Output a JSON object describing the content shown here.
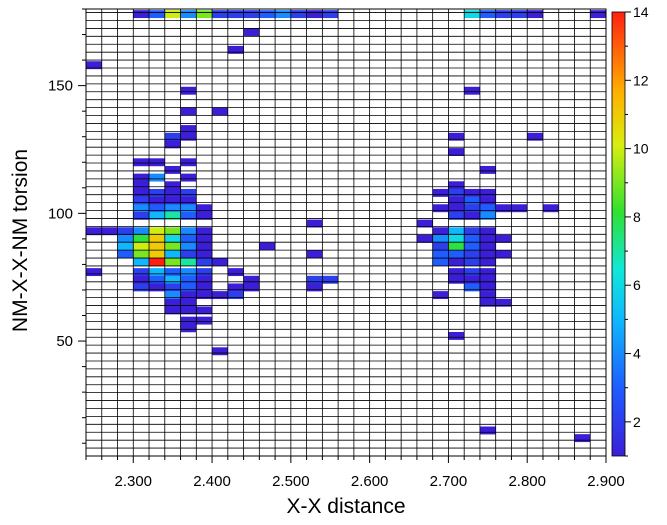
{
  "chart_data": {
    "type": "heatmap",
    "title": "",
    "xlabel": "X-X distance",
    "ylabel": "NM-X-X-NM torsion",
    "xlim": [
      2.24,
      2.9
    ],
    "ylim": [
      5,
      180
    ],
    "bin_width_x": 0.02,
    "bin_height_y": 3.1,
    "x_ticks": [
      "2.300",
      "2.400",
      "2.500",
      "2.600",
      "2.700",
      "2.800",
      "2.900"
    ],
    "x_tick_values": [
      2.3,
      2.4,
      2.5,
      2.6,
      2.7,
      2.8,
      2.9
    ],
    "y_ticks": [
      "50",
      "100",
      "150"
    ],
    "y_tick_values": [
      50,
      100,
      150
    ],
    "colorbar": {
      "min": 1,
      "max": 14,
      "ticks": [
        "2",
        "4",
        "6",
        "8",
        "10",
        "12",
        "14"
      ],
      "tick_values": [
        2,
        4,
        6,
        8,
        10,
        12,
        14
      ]
    },
    "grid": true,
    "cells": [
      {
        "x": 2.31,
        "y": 178,
        "v": 1
      },
      {
        "x": 2.33,
        "y": 178,
        "v": 3
      },
      {
        "x": 2.35,
        "y": 178,
        "v": 10
      },
      {
        "x": 2.37,
        "y": 178,
        "v": 4
      },
      {
        "x": 2.39,
        "y": 178,
        "v": 9
      },
      {
        "x": 2.41,
        "y": 178,
        "v": 2
      },
      {
        "x": 2.43,
        "y": 178,
        "v": 2
      },
      {
        "x": 2.45,
        "y": 178,
        "v": 2
      },
      {
        "x": 2.47,
        "y": 178,
        "v": 3
      },
      {
        "x": 2.49,
        "y": 178,
        "v": 4
      },
      {
        "x": 2.51,
        "y": 178,
        "v": 2
      },
      {
        "x": 2.53,
        "y": 178,
        "v": 1
      },
      {
        "x": 2.55,
        "y": 178,
        "v": 2
      },
      {
        "x": 2.73,
        "y": 178,
        "v": 6
      },
      {
        "x": 2.75,
        "y": 178,
        "v": 3
      },
      {
        "x": 2.77,
        "y": 178,
        "v": 2
      },
      {
        "x": 2.79,
        "y": 178,
        "v": 2
      },
      {
        "x": 2.81,
        "y": 178,
        "v": 1
      },
      {
        "x": 2.89,
        "y": 178,
        "v": 1
      },
      {
        "x": 2.45,
        "y": 171,
        "v": 1
      },
      {
        "x": 2.43,
        "y": 164,
        "v": 1
      },
      {
        "x": 2.25,
        "y": 158,
        "v": 1
      },
      {
        "x": 2.73,
        "y": 148,
        "v": 1
      },
      {
        "x": 2.37,
        "y": 148,
        "v": 1
      },
      {
        "x": 2.37,
        "y": 140,
        "v": 1
      },
      {
        "x": 2.41,
        "y": 140,
        "v": 1
      },
      {
        "x": 2.37,
        "y": 133,
        "v": 1
      },
      {
        "x": 2.35,
        "y": 130,
        "v": 2
      },
      {
        "x": 2.37,
        "y": 130,
        "v": 1
      },
      {
        "x": 2.71,
        "y": 130,
        "v": 1
      },
      {
        "x": 2.81,
        "y": 130,
        "v": 1
      },
      {
        "x": 2.35,
        "y": 127,
        "v": 1
      },
      {
        "x": 2.71,
        "y": 124,
        "v": 1
      },
      {
        "x": 2.31,
        "y": 120,
        "v": 1
      },
      {
        "x": 2.33,
        "y": 120,
        "v": 1
      },
      {
        "x": 2.37,
        "y": 120,
        "v": 1
      },
      {
        "x": 2.35,
        "y": 117,
        "v": 1
      },
      {
        "x": 2.75,
        "y": 117,
        "v": 1
      },
      {
        "x": 2.31,
        "y": 114,
        "v": 1
      },
      {
        "x": 2.33,
        "y": 114,
        "v": 4
      },
      {
        "x": 2.37,
        "y": 114,
        "v": 1
      },
      {
        "x": 2.31,
        "y": 111,
        "v": 1
      },
      {
        "x": 2.35,
        "y": 111,
        "v": 1
      },
      {
        "x": 2.71,
        "y": 111,
        "v": 1
      },
      {
        "x": 2.31,
        "y": 108,
        "v": 1
      },
      {
        "x": 2.33,
        "y": 108,
        "v": 2
      },
      {
        "x": 2.35,
        "y": 108,
        "v": 1
      },
      {
        "x": 2.37,
        "y": 108,
        "v": 2
      },
      {
        "x": 2.69,
        "y": 108,
        "v": 1
      },
      {
        "x": 2.71,
        "y": 108,
        "v": 2
      },
      {
        "x": 2.73,
        "y": 108,
        "v": 1
      },
      {
        "x": 2.75,
        "y": 108,
        "v": 1
      },
      {
        "x": 2.31,
        "y": 105,
        "v": 2
      },
      {
        "x": 2.33,
        "y": 105,
        "v": 1
      },
      {
        "x": 2.35,
        "y": 105,
        "v": 1
      },
      {
        "x": 2.37,
        "y": 105,
        "v": 1
      },
      {
        "x": 2.71,
        "y": 105,
        "v": 1
      },
      {
        "x": 2.73,
        "y": 105,
        "v": 3
      },
      {
        "x": 2.75,
        "y": 105,
        "v": 1
      },
      {
        "x": 2.31,
        "y": 102,
        "v": 4
      },
      {
        "x": 2.33,
        "y": 102,
        "v": 3
      },
      {
        "x": 2.35,
        "y": 102,
        "v": 4
      },
      {
        "x": 2.37,
        "y": 102,
        "v": 4
      },
      {
        "x": 2.39,
        "y": 102,
        "v": 1
      },
      {
        "x": 2.69,
        "y": 102,
        "v": 1
      },
      {
        "x": 2.71,
        "y": 102,
        "v": 1
      },
      {
        "x": 2.73,
        "y": 102,
        "v": 2
      },
      {
        "x": 2.75,
        "y": 102,
        "v": 3
      },
      {
        "x": 2.77,
        "y": 102,
        "v": 1
      },
      {
        "x": 2.79,
        "y": 102,
        "v": 1
      },
      {
        "x": 2.83,
        "y": 102,
        "v": 1
      },
      {
        "x": 2.31,
        "y": 99,
        "v": 2
      },
      {
        "x": 2.33,
        "y": 99,
        "v": 5
      },
      {
        "x": 2.35,
        "y": 99,
        "v": 7
      },
      {
        "x": 2.37,
        "y": 99,
        "v": 3
      },
      {
        "x": 2.39,
        "y": 99,
        "v": 1
      },
      {
        "x": 2.71,
        "y": 99,
        "v": 2
      },
      {
        "x": 2.73,
        "y": 99,
        "v": 1
      },
      {
        "x": 2.75,
        "y": 99,
        "v": 4
      },
      {
        "x": 2.53,
        "y": 96,
        "v": 1
      },
      {
        "x": 2.67,
        "y": 96,
        "v": 1
      },
      {
        "x": 2.25,
        "y": 93,
        "v": 1
      },
      {
        "x": 2.27,
        "y": 93,
        "v": 1
      },
      {
        "x": 2.29,
        "y": 93,
        "v": 2
      },
      {
        "x": 2.31,
        "y": 93,
        "v": 4
      },
      {
        "x": 2.33,
        "y": 93,
        "v": 10
      },
      {
        "x": 2.35,
        "y": 93,
        "v": 9
      },
      {
        "x": 2.37,
        "y": 93,
        "v": 4
      },
      {
        "x": 2.39,
        "y": 93,
        "v": 1
      },
      {
        "x": 2.69,
        "y": 93,
        "v": 1
      },
      {
        "x": 2.71,
        "y": 93,
        "v": 5
      },
      {
        "x": 2.73,
        "y": 93,
        "v": 2
      },
      {
        "x": 2.75,
        "y": 93,
        "v": 1
      },
      {
        "x": 2.29,
        "y": 90,
        "v": 4
      },
      {
        "x": 2.31,
        "y": 90,
        "v": 8
      },
      {
        "x": 2.33,
        "y": 90,
        "v": 11
      },
      {
        "x": 2.35,
        "y": 90,
        "v": 6
      },
      {
        "x": 2.37,
        "y": 90,
        "v": 3
      },
      {
        "x": 2.39,
        "y": 90,
        "v": 1
      },
      {
        "x": 2.67,
        "y": 90,
        "v": 1
      },
      {
        "x": 2.69,
        "y": 90,
        "v": 4
      },
      {
        "x": 2.71,
        "y": 90,
        "v": 6
      },
      {
        "x": 2.73,
        "y": 90,
        "v": 3
      },
      {
        "x": 2.75,
        "y": 90,
        "v": 1
      },
      {
        "x": 2.77,
        "y": 90,
        "v": 1
      },
      {
        "x": 2.29,
        "y": 87,
        "v": 5
      },
      {
        "x": 2.31,
        "y": 87,
        "v": 10
      },
      {
        "x": 2.33,
        "y": 87,
        "v": 11
      },
      {
        "x": 2.35,
        "y": 87,
        "v": 9
      },
      {
        "x": 2.37,
        "y": 87,
        "v": 4
      },
      {
        "x": 2.39,
        "y": 87,
        "v": 1
      },
      {
        "x": 2.47,
        "y": 87,
        "v": 1
      },
      {
        "x": 2.69,
        "y": 87,
        "v": 2
      },
      {
        "x": 2.71,
        "y": 87,
        "v": 8
      },
      {
        "x": 2.73,
        "y": 87,
        "v": 3
      },
      {
        "x": 2.75,
        "y": 87,
        "v": 1
      },
      {
        "x": 2.29,
        "y": 84,
        "v": 3
      },
      {
        "x": 2.31,
        "y": 84,
        "v": 9
      },
      {
        "x": 2.33,
        "y": 84,
        "v": 11
      },
      {
        "x": 2.35,
        "y": 84,
        "v": 5
      },
      {
        "x": 2.37,
        "y": 84,
        "v": 2
      },
      {
        "x": 2.39,
        "y": 84,
        "v": 1
      },
      {
        "x": 2.53,
        "y": 84,
        "v": 1
      },
      {
        "x": 2.69,
        "y": 84,
        "v": 3
      },
      {
        "x": 2.71,
        "y": 84,
        "v": 3
      },
      {
        "x": 2.73,
        "y": 84,
        "v": 2
      },
      {
        "x": 2.75,
        "y": 84,
        "v": 1
      },
      {
        "x": 2.77,
        "y": 84,
        "v": 1
      },
      {
        "x": 2.31,
        "y": 81,
        "v": 5
      },
      {
        "x": 2.33,
        "y": 81,
        "v": 14
      },
      {
        "x": 2.35,
        "y": 81,
        "v": 9
      },
      {
        "x": 2.37,
        "y": 81,
        "v": 7
      },
      {
        "x": 2.39,
        "y": 81,
        "v": 2
      },
      {
        "x": 2.41,
        "y": 81,
        "v": 1
      },
      {
        "x": 2.69,
        "y": 81,
        "v": 3
      },
      {
        "x": 2.71,
        "y": 81,
        "v": 1
      },
      {
        "x": 2.73,
        "y": 81,
        "v": 2
      },
      {
        "x": 2.75,
        "y": 81,
        "v": 1
      },
      {
        "x": 2.25,
        "y": 77,
        "v": 1
      },
      {
        "x": 2.31,
        "y": 77,
        "v": 2
      },
      {
        "x": 2.33,
        "y": 77,
        "v": 5
      },
      {
        "x": 2.35,
        "y": 77,
        "v": 3
      },
      {
        "x": 2.37,
        "y": 77,
        "v": 4
      },
      {
        "x": 2.39,
        "y": 77,
        "v": 2
      },
      {
        "x": 2.43,
        "y": 77,
        "v": 1
      },
      {
        "x": 2.71,
        "y": 77,
        "v": 1
      },
      {
        "x": 2.73,
        "y": 77,
        "v": 2
      },
      {
        "x": 2.75,
        "y": 77,
        "v": 1
      },
      {
        "x": 2.31,
        "y": 74,
        "v": 1
      },
      {
        "x": 2.33,
        "y": 74,
        "v": 3
      },
      {
        "x": 2.35,
        "y": 74,
        "v": 5
      },
      {
        "x": 2.37,
        "y": 74,
        "v": 3
      },
      {
        "x": 2.39,
        "y": 74,
        "v": 1
      },
      {
        "x": 2.45,
        "y": 74,
        "v": 1
      },
      {
        "x": 2.53,
        "y": 74,
        "v": 2
      },
      {
        "x": 2.55,
        "y": 74,
        "v": 2
      },
      {
        "x": 2.71,
        "y": 74,
        "v": 1
      },
      {
        "x": 2.73,
        "y": 74,
        "v": 1
      },
      {
        "x": 2.75,
        "y": 74,
        "v": 1
      },
      {
        "x": 2.31,
        "y": 71,
        "v": 2
      },
      {
        "x": 2.33,
        "y": 71,
        "v": 1
      },
      {
        "x": 2.35,
        "y": 71,
        "v": 2
      },
      {
        "x": 2.37,
        "y": 71,
        "v": 3
      },
      {
        "x": 2.39,
        "y": 71,
        "v": 1
      },
      {
        "x": 2.43,
        "y": 71,
        "v": 1
      },
      {
        "x": 2.45,
        "y": 71,
        "v": 1
      },
      {
        "x": 2.53,
        "y": 71,
        "v": 1
      },
      {
        "x": 2.73,
        "y": 71,
        "v": 3
      },
      {
        "x": 2.75,
        "y": 71,
        "v": 1
      },
      {
        "x": 2.35,
        "y": 68,
        "v": 4
      },
      {
        "x": 2.37,
        "y": 68,
        "v": 1
      },
      {
        "x": 2.39,
        "y": 68,
        "v": 1
      },
      {
        "x": 2.41,
        "y": 68,
        "v": 1
      },
      {
        "x": 2.43,
        "y": 68,
        "v": 2
      },
      {
        "x": 2.69,
        "y": 68,
        "v": 1
      },
      {
        "x": 2.75,
        "y": 68,
        "v": 1
      },
      {
        "x": 2.35,
        "y": 65,
        "v": 1
      },
      {
        "x": 2.37,
        "y": 65,
        "v": 1
      },
      {
        "x": 2.75,
        "y": 65,
        "v": 1
      },
      {
        "x": 2.77,
        "y": 65,
        "v": 1
      },
      {
        "x": 2.35,
        "y": 62,
        "v": 1
      },
      {
        "x": 2.37,
        "y": 62,
        "v": 1
      },
      {
        "x": 2.39,
        "y": 62,
        "v": 1
      },
      {
        "x": 2.37,
        "y": 58,
        "v": 1
      },
      {
        "x": 2.39,
        "y": 58,
        "v": 1
      },
      {
        "x": 2.37,
        "y": 55,
        "v": 1
      },
      {
        "x": 2.71,
        "y": 52,
        "v": 1
      },
      {
        "x": 2.41,
        "y": 46,
        "v": 1
      },
      {
        "x": 2.75,
        "y": 15,
        "v": 1
      },
      {
        "x": 2.87,
        "y": 12,
        "v": 1
      }
    ]
  }
}
